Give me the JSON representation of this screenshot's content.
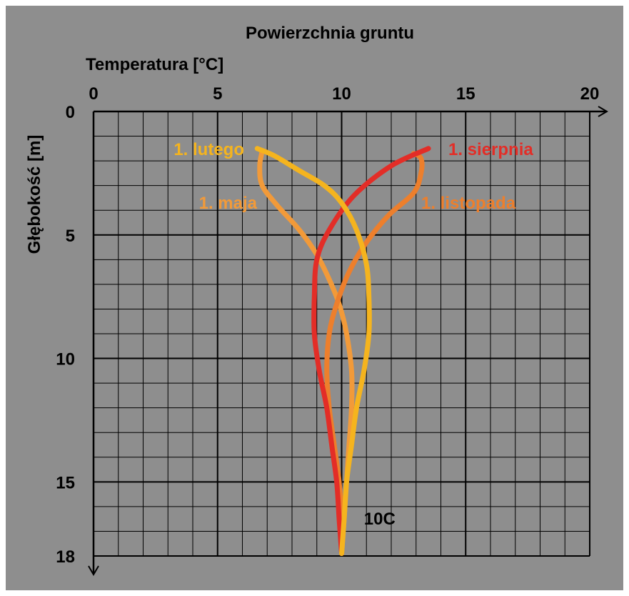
{
  "chart_data": {
    "type": "line",
    "title": "Powierzchnia gruntu",
    "xlabel": "Temperatura [°C]",
    "ylabel": "Głębokość [m]",
    "xlim": [
      0,
      20
    ],
    "ylim": [
      0,
      18
    ],
    "x_axis_position": "top",
    "y_axis_inverted": true,
    "x_ticks": [
      0,
      5,
      10,
      15,
      20
    ],
    "y_ticks": [
      0,
      5,
      10,
      15,
      18
    ],
    "x_tick_labels": [
      "0",
      "5",
      "10",
      "15",
      "20"
    ],
    "y_tick_labels": [
      "0",
      "5",
      "10",
      "15",
      "18"
    ],
    "grid": true,
    "grid_minor_step_x": 1,
    "grid_minor_step_y": 1,
    "series": [
      {
        "name": "1. lutego",
        "color": "#f5b41e",
        "points": [
          [
            6.6,
            1.5
          ],
          [
            7.3,
            1.8
          ],
          [
            8.3,
            2.4
          ],
          [
            9.3,
            3.0
          ],
          [
            10.0,
            3.7
          ],
          [
            10.6,
            4.8
          ],
          [
            11.0,
            6.2
          ],
          [
            11.1,
            7.5
          ],
          [
            11.1,
            9.0
          ],
          [
            10.9,
            10.5
          ],
          [
            10.6,
            12.0
          ],
          [
            10.4,
            13.5
          ],
          [
            10.2,
            15.0
          ],
          [
            10.1,
            16.5
          ],
          [
            10.0,
            17.9
          ]
        ]
      },
      {
        "name": "1. maja",
        "color": "#f29a39",
        "points": [
          [
            6.8,
            1.6
          ],
          [
            6.7,
            2.2
          ],
          [
            6.8,
            3.0
          ],
          [
            7.4,
            3.8
          ],
          [
            8.3,
            4.8
          ],
          [
            9.0,
            5.8
          ],
          [
            9.5,
            6.8
          ],
          [
            9.9,
            7.8
          ],
          [
            10.2,
            9.0
          ],
          [
            10.4,
            10.5
          ],
          [
            10.4,
            12.0
          ],
          [
            10.3,
            13.5
          ],
          [
            10.2,
            15.0
          ],
          [
            10.1,
            16.5
          ],
          [
            10.0,
            17.9
          ]
        ]
      },
      {
        "name": "1. sierpnia",
        "color": "#e32d27",
        "points": [
          [
            13.5,
            1.5
          ],
          [
            12.0,
            2.2
          ],
          [
            10.5,
            3.4
          ],
          [
            9.5,
            4.8
          ],
          [
            9.0,
            6.0
          ],
          [
            8.9,
            7.5
          ],
          [
            8.9,
            9.0
          ],
          [
            9.1,
            10.5
          ],
          [
            9.4,
            12.0
          ],
          [
            9.6,
            13.5
          ],
          [
            9.8,
            15.0
          ],
          [
            9.9,
            16.5
          ],
          [
            10.0,
            17.9
          ]
        ]
      },
      {
        "name": "1. listopada",
        "color": "#ed7f2c",
        "points": [
          [
            12.9,
            1.7
          ],
          [
            13.2,
            1.9
          ],
          [
            13.2,
            2.5
          ],
          [
            12.9,
            3.3
          ],
          [
            11.9,
            4.2
          ],
          [
            11.0,
            5.3
          ],
          [
            10.3,
            6.5
          ],
          [
            9.8,
            7.8
          ],
          [
            9.5,
            9.0
          ],
          [
            9.4,
            10.5
          ],
          [
            9.5,
            12.0
          ],
          [
            9.7,
            13.5
          ],
          [
            9.9,
            15.0
          ],
          [
            10.0,
            16.5
          ],
          [
            10.0,
            17.9
          ]
        ]
      }
    ],
    "annotations": [
      {
        "text": "10C",
        "x": 10.9,
        "y": 16.5,
        "color": "#000000"
      }
    ],
    "background_color": "#8e8e8e"
  }
}
